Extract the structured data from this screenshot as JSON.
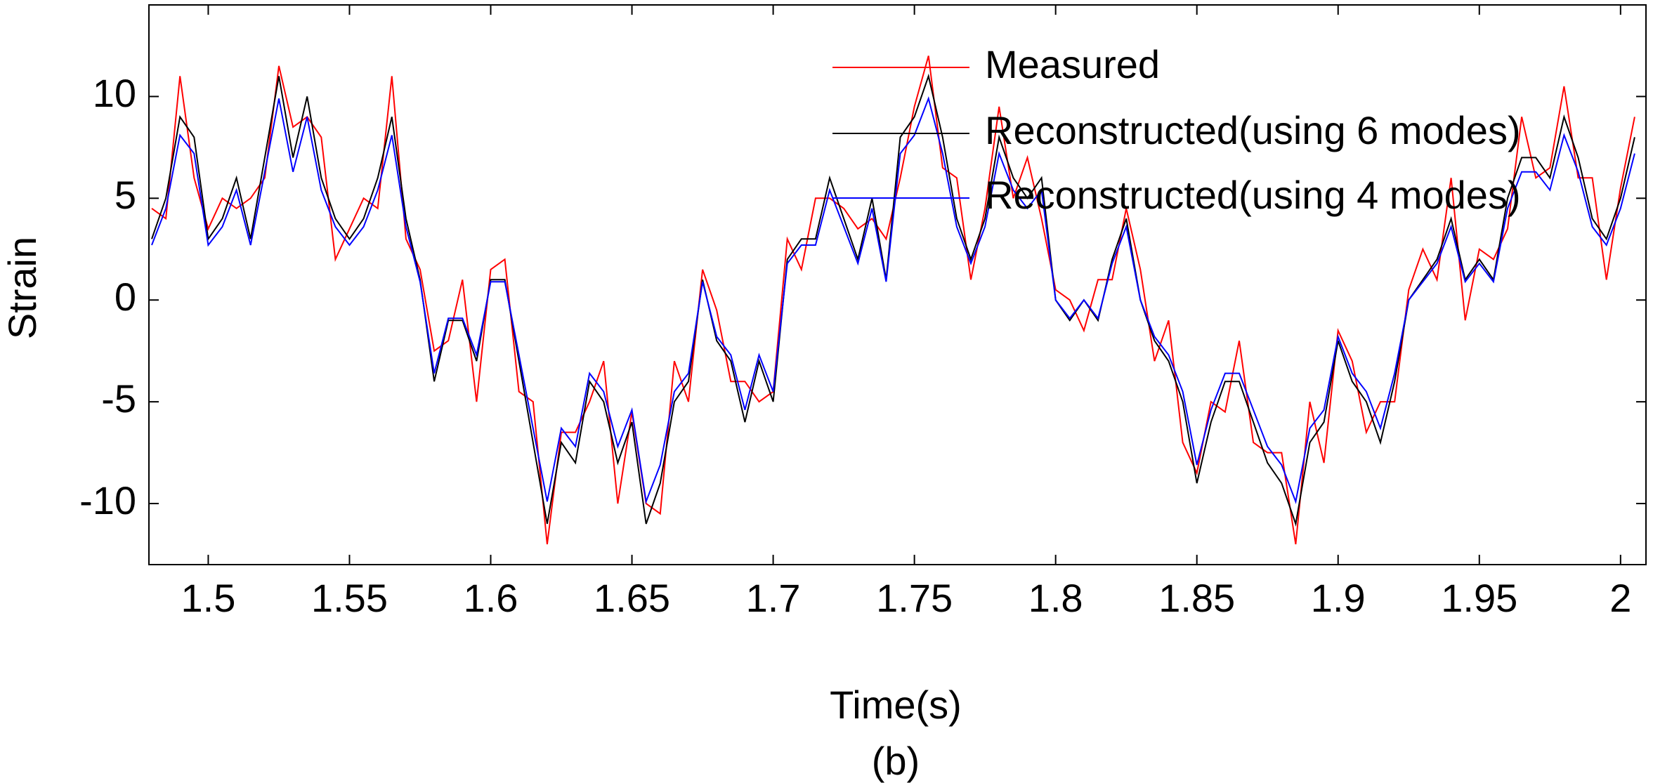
{
  "chart_data": {
    "type": "line",
    "x_label": "Time(s)",
    "y_label": "Strain",
    "caption": "(b)",
    "x": [
      1.48,
      1.485,
      1.49,
      1.495,
      1.5,
      1.505,
      1.51,
      1.515,
      1.52,
      1.525,
      1.53,
      1.535,
      1.54,
      1.545,
      1.55,
      1.555,
      1.56,
      1.565,
      1.57,
      1.575,
      1.58,
      1.585,
      1.59,
      1.595,
      1.6,
      1.605,
      1.61,
      1.615,
      1.62,
      1.625,
      1.63,
      1.635,
      1.64,
      1.645,
      1.65,
      1.655,
      1.66,
      1.665,
      1.67,
      1.675,
      1.68,
      1.685,
      1.69,
      1.695,
      1.7,
      1.705,
      1.71,
      1.715,
      1.72,
      1.725,
      1.73,
      1.735,
      1.74,
      1.745,
      1.75,
      1.755,
      1.76,
      1.765,
      1.77,
      1.775,
      1.78,
      1.785,
      1.79,
      1.795,
      1.8,
      1.805,
      1.81,
      1.815,
      1.82,
      1.825,
      1.83,
      1.835,
      1.84,
      1.845,
      1.85,
      1.855,
      1.86,
      1.865,
      1.87,
      1.875,
      1.88,
      1.885,
      1.89,
      1.895,
      1.9,
      1.905,
      1.91,
      1.915,
      1.92,
      1.925,
      1.93,
      1.935,
      1.94,
      1.945,
      1.95,
      1.955,
      1.96,
      1.965,
      1.97,
      1.975,
      1.98,
      1.985,
      1.99,
      1.995,
      2.0,
      2.005
    ],
    "series": [
      {
        "name": "Measured",
        "color": "#ff0000",
        "values": [
          4.5,
          4,
          11,
          6,
          3.5,
          5,
          4.5,
          5,
          6,
          11.5,
          8.5,
          9,
          8,
          2,
          3.5,
          5,
          4.5,
          11,
          3,
          1.5,
          -2.5,
          -2,
          1,
          -5,
          1.5,
          2,
          -4.5,
          -5,
          -12,
          -6.5,
          -6.5,
          -5,
          -3,
          -10,
          -5.5,
          -10,
          -10.5,
          -3,
          -5,
          1.5,
          -0.5,
          -4,
          -4,
          -5,
          -4.5,
          3,
          1.5,
          5,
          5,
          4.5,
          3.5,
          4,
          3,
          6,
          9.5,
          12,
          6.5,
          6,
          1,
          4.5,
          9.5,
          5,
          7,
          4,
          0.5,
          0,
          -1.5,
          1,
          1,
          4.5,
          1.5,
          -3,
          -1,
          -7,
          -8.5,
          -5,
          -5.5,
          -2,
          -7,
          -7.5,
          -7.5,
          -12,
          -5,
          -8,
          -1.5,
          -3,
          -6.5,
          -5,
          -5,
          0.5,
          2.5,
          1,
          6,
          -1,
          2.5,
          2,
          3.5,
          9,
          6,
          6.5,
          10.5,
          6,
          6,
          1,
          5.5,
          9
        ]
      },
      {
        "name": "Reconstructed(using 6 modes)",
        "color": "#000000",
        "values": [
          3,
          5,
          9,
          8,
          3,
          4,
          6,
          3,
          7,
          11,
          7,
          10,
          6,
          4,
          3,
          4,
          6,
          9,
          4,
          1,
          -4,
          -1,
          -1,
          -3,
          1,
          1,
          -3,
          -7,
          -11,
          -7,
          -8,
          -4,
          -5,
          -8,
          -6,
          -11,
          -9,
          -5,
          -4,
          1,
          -2,
          -3,
          -6,
          -3,
          -5,
          2,
          3,
          3,
          6,
          4,
          2,
          5,
          1,
          8,
          9,
          11,
          8,
          4,
          2,
          4,
          8,
          6,
          5,
          6,
          0,
          -1,
          0,
          -1,
          2,
          4,
          0,
          -2,
          -3,
          -5,
          -9,
          -6,
          -4,
          -4,
          -6,
          -8,
          -9,
          -11,
          -7,
          -6,
          -2,
          -4,
          -5,
          -7,
          -4,
          0,
          1,
          2,
          4,
          1,
          2,
          1,
          5,
          7,
          7,
          6,
          9,
          7,
          4,
          3,
          5,
          8
        ]
      },
      {
        "name": "Reconstructed(using 4 modes)",
        "color": "#0000ff",
        "values": [
          2.7,
          4.5,
          8.1,
          7.2,
          2.7,
          3.6,
          5.4,
          2.7,
          6.3,
          9.9,
          6.3,
          9,
          5.4,
          3.6,
          2.7,
          3.6,
          5.4,
          8.1,
          3.6,
          0.9,
          -3.6,
          -0.9,
          -0.9,
          -2.7,
          0.9,
          0.9,
          -2.7,
          -6.3,
          -9.9,
          -6.3,
          -7.2,
          -3.6,
          -4.5,
          -7.2,
          -5.4,
          -9.9,
          -8.1,
          -4.5,
          -3.6,
          0.9,
          -1.8,
          -2.7,
          -5.4,
          -2.7,
          -4.5,
          1.8,
          2.7,
          2.7,
          5.4,
          3.6,
          1.8,
          4.5,
          0.9,
          7.2,
          8.1,
          9.9,
          7.2,
          3.6,
          1.8,
          3.6,
          7.2,
          5.4,
          4.5,
          5.4,
          0,
          -0.9,
          0,
          -0.9,
          1.8,
          3.6,
          0,
          -1.8,
          -2.7,
          -4.5,
          -8.1,
          -5.4,
          -3.6,
          -3.6,
          -5.4,
          -7.2,
          -8.1,
          -9.9,
          -6.3,
          -5.4,
          -1.8,
          -3.6,
          -4.5,
          -6.3,
          -3.6,
          0,
          0.9,
          1.8,
          3.6,
          0.9,
          1.8,
          0.9,
          4.5,
          6.3,
          6.3,
          5.4,
          8.1,
          6.3,
          3.6,
          2.7,
          4.5,
          7.2
        ]
      }
    ],
    "xlim": [
      1.479,
      2.009
    ],
    "ylim": [
      -13,
      14.5
    ],
    "xticks": [
      1.5,
      1.55,
      1.6,
      1.65,
      1.7,
      1.75,
      1.8,
      1.85,
      1.9,
      1.95,
      2
    ],
    "yticks": [
      -10,
      -5,
      0,
      5,
      10
    ],
    "grid": false,
    "legend": "upper right"
  }
}
